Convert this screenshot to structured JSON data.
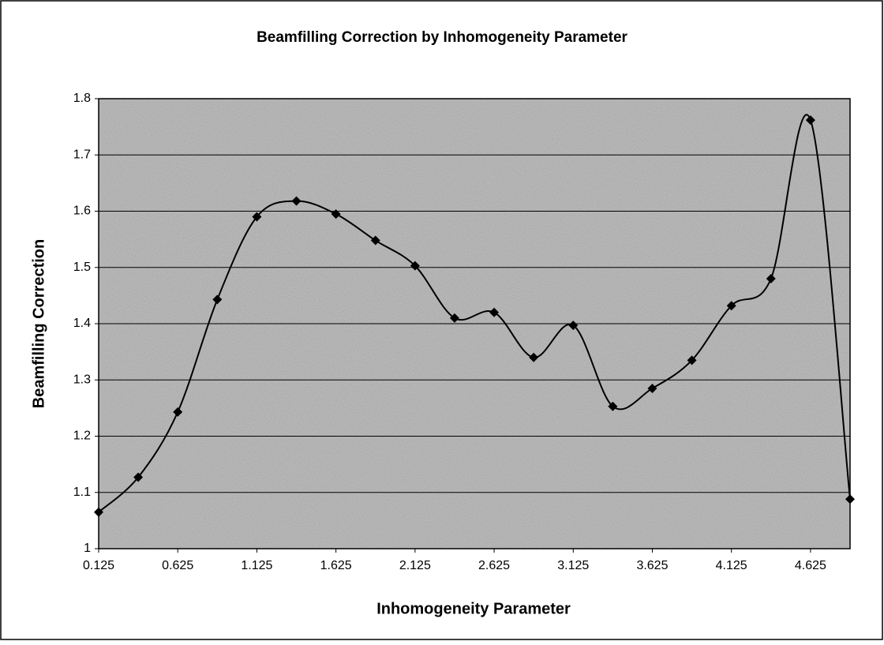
{
  "chart_data": {
    "type": "line",
    "title": "Beamfilling Correction by Inhomogeneity Parameter",
    "x_label": "Inhomogeneity Parameter",
    "y_label": "Beamfilling Correction",
    "x": [
      0.125,
      0.375,
      0.625,
      0.875,
      1.125,
      1.375,
      1.625,
      1.875,
      2.125,
      2.375,
      2.625,
      2.875,
      3.125,
      3.375,
      3.625,
      3.875,
      4.125,
      4.375,
      4.625,
      4.875
    ],
    "values": [
      1.065,
      1.127,
      1.243,
      1.443,
      1.59,
      1.618,
      1.595,
      1.548,
      1.503,
      1.41,
      1.42,
      1.34,
      1.397,
      1.253,
      1.285,
      1.335,
      1.432,
      1.48,
      1.762,
      1.088
    ],
    "color": "#000000",
    "xlim": [
      0.125,
      4.875
    ],
    "xticks": [
      0.125,
      0.625,
      1.125,
      1.625,
      2.125,
      2.625,
      3.125,
      3.625,
      4.125,
      4.625
    ],
    "ylim": [
      1,
      1.8
    ],
    "yticks": [
      1,
      1.1,
      1.2,
      1.3,
      1.4,
      1.5,
      1.6,
      1.7,
      1.8
    ],
    "grid": true,
    "smooth": true
  }
}
